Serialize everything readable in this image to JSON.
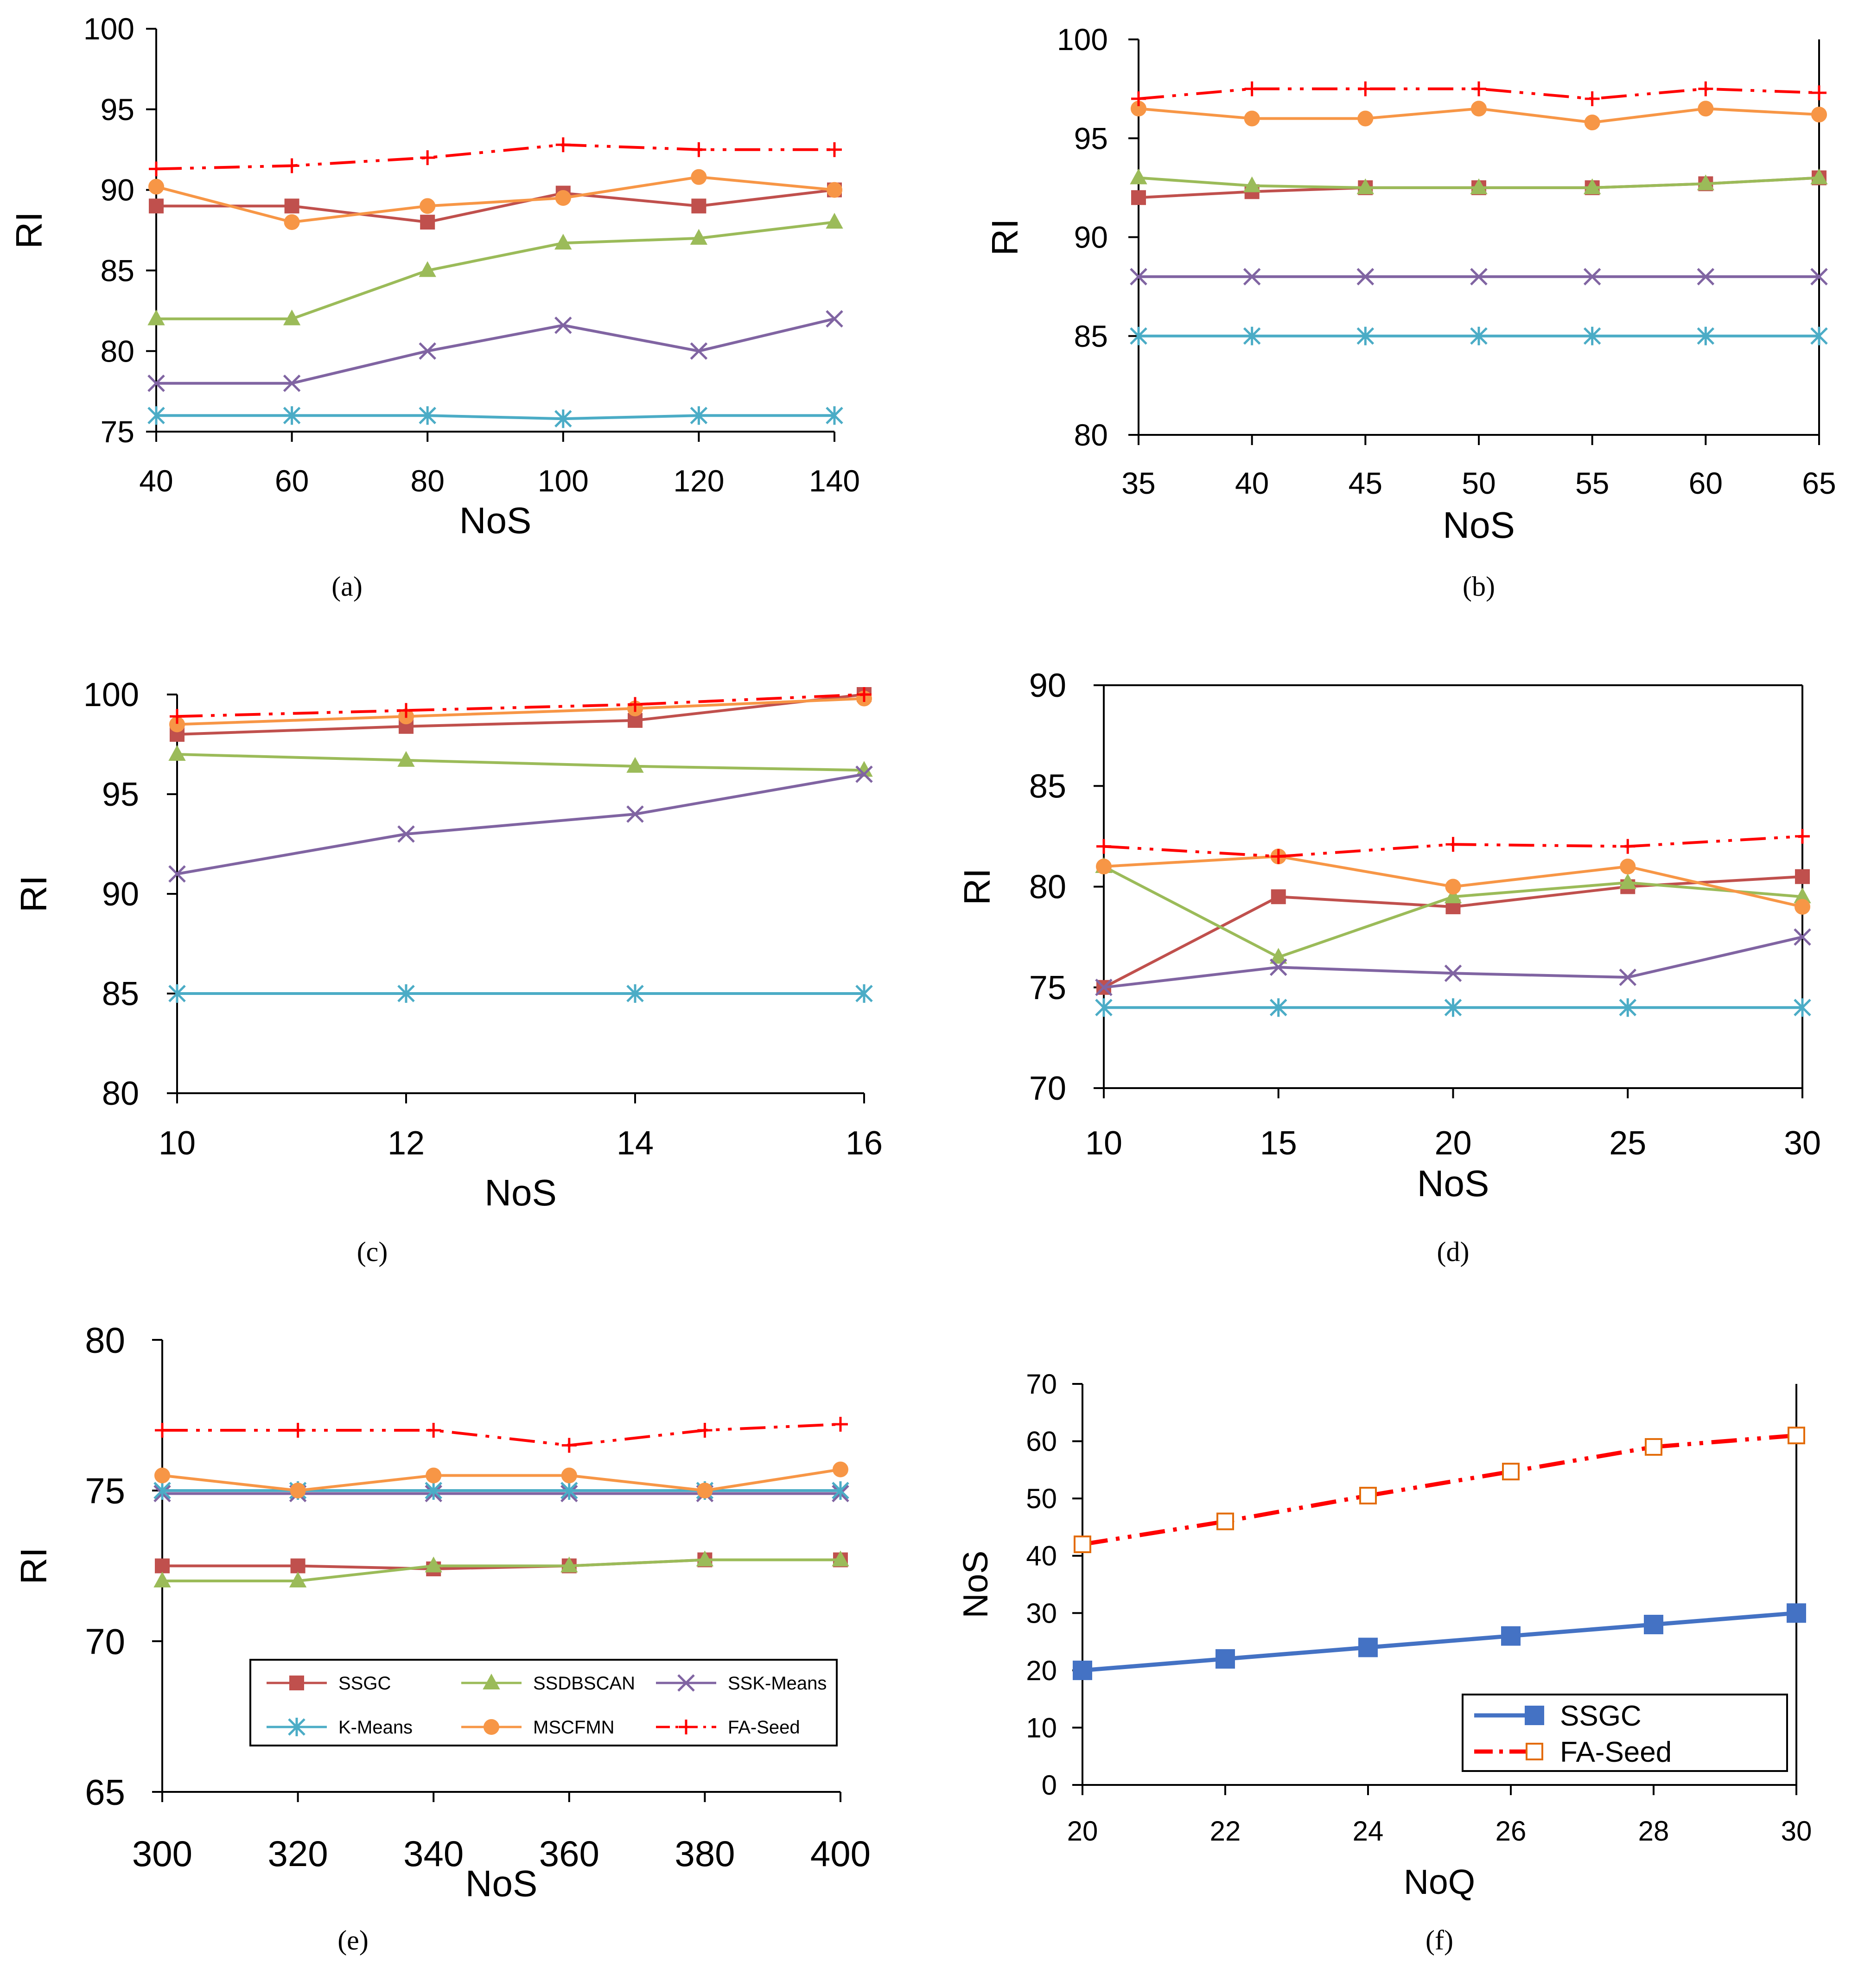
{
  "series_styles": {
    "SSGC": {
      "color": "#C0504D",
      "marker": "square",
      "dash": "solid"
    },
    "SSDBSCAN": {
      "color": "#9BBB59",
      "marker": "triangle",
      "dash": "solid"
    },
    "SSK-Means": {
      "color": "#8064A2",
      "marker": "x",
      "dash": "solid"
    },
    "K-Means": {
      "color": "#4BACC6",
      "marker": "asterisk",
      "dash": "solid"
    },
    "MSCFMN": {
      "color": "#F79646",
      "marker": "circle",
      "dash": "solid"
    },
    "FA-Seed": {
      "color": "#FF0000",
      "marker": "plus",
      "dash": "dashdotdot"
    },
    "SSGC_f": {
      "color": "#4472C4",
      "marker": "square-filled",
      "dash": "solid"
    },
    "FA-Seed_f": {
      "color": "#FF0000",
      "marker": "square-open",
      "dash": "dashdotdot"
    }
  },
  "chart_data": [
    {
      "id": "a",
      "caption": "(a)",
      "type": "line",
      "xlabel": "NoS",
      "ylabel": "RI",
      "x": [
        40,
        60,
        80,
        100,
        120,
        140
      ],
      "xticks": [
        "40",
        "60",
        "80",
        "100",
        "120",
        "140"
      ],
      "ylim": [
        75,
        100
      ],
      "yticks": [
        75,
        80,
        85,
        90,
        95,
        100
      ],
      "legend": null,
      "series": [
        {
          "name": "SSGC",
          "style": "SSGC",
          "values": [
            89,
            89,
            88,
            89.8,
            89,
            90
          ]
        },
        {
          "name": "SSDBSCAN",
          "style": "SSDBSCAN",
          "values": [
            82,
            82,
            85,
            86.7,
            87,
            88
          ]
        },
        {
          "name": "SSK-Means",
          "style": "SSK-Means",
          "values": [
            78,
            78,
            80,
            81.6,
            80,
            82
          ]
        },
        {
          "name": "K-Means",
          "style": "K-Means",
          "values": [
            76,
            76,
            76,
            75.8,
            76,
            76
          ]
        },
        {
          "name": "MSCFMN",
          "style": "MSCFMN",
          "values": [
            90.2,
            88,
            89,
            89.5,
            90.8,
            90
          ]
        },
        {
          "name": "FA-Seed",
          "style": "FA-Seed",
          "values": [
            91.3,
            91.5,
            92,
            92.8,
            92.5,
            92.5
          ]
        }
      ]
    },
    {
      "id": "b",
      "caption": "(b)",
      "type": "line",
      "xlabel": "NoS",
      "ylabel": "RI",
      "x": [
        35,
        40,
        45,
        50,
        55,
        60,
        65
      ],
      "xticks": [
        "35",
        "40",
        "45",
        "50",
        "55",
        "60",
        "65"
      ],
      "ylim": [
        80,
        100
      ],
      "yticks": [
        80,
        85,
        90,
        95,
        100
      ],
      "legend": null,
      "series": [
        {
          "name": "SSGC",
          "style": "SSGC",
          "values": [
            92,
            92.3,
            92.5,
            92.5,
            92.5,
            92.7,
            93
          ]
        },
        {
          "name": "SSDBSCAN",
          "style": "SSDBSCAN",
          "values": [
            93,
            92.6,
            92.5,
            92.5,
            92.5,
            92.7,
            93
          ]
        },
        {
          "name": "SSK-Means",
          "style": "SSK-Means",
          "values": [
            88,
            88,
            88,
            88,
            88,
            88,
            88
          ]
        },
        {
          "name": "K-Means",
          "style": "K-Means",
          "values": [
            85,
            85,
            85,
            85,
            85,
            85,
            85
          ]
        },
        {
          "name": "MSCFMN",
          "style": "MSCFMN",
          "values": [
            96.5,
            96,
            96,
            96.5,
            95.8,
            96.5,
            96.2
          ]
        },
        {
          "name": "FA-Seed",
          "style": "FA-Seed",
          "values": [
            97,
            97.5,
            97.5,
            97.5,
            97,
            97.5,
            97.3
          ]
        }
      ]
    },
    {
      "id": "c",
      "caption": "(c)",
      "type": "line",
      "xlabel": "NoS",
      "ylabel": "RI",
      "x": [
        10,
        12,
        14,
        16
      ],
      "xticks": [
        "10",
        "12",
        "14",
        "16"
      ],
      "ylim": [
        80,
        100
      ],
      "yticks": [
        80,
        85,
        90,
        95,
        100
      ],
      "legend": null,
      "series": [
        {
          "name": "SSGC",
          "style": "SSGC",
          "values": [
            98,
            98.4,
            98.7,
            100
          ]
        },
        {
          "name": "SSDBSCAN",
          "style": "SSDBSCAN",
          "values": [
            97,
            96.7,
            96.4,
            96.2
          ]
        },
        {
          "name": "SSK-Means",
          "style": "SSK-Means",
          "values": [
            91,
            93,
            94,
            96
          ]
        },
        {
          "name": "K-Means",
          "style": "K-Means",
          "values": [
            85,
            85,
            85,
            85
          ]
        },
        {
          "name": "MSCFMN",
          "style": "MSCFMN",
          "values": [
            98.5,
            98.9,
            99.3,
            99.8
          ]
        },
        {
          "name": "FA-Seed",
          "style": "FA-Seed",
          "values": [
            98.9,
            99.2,
            99.5,
            100
          ]
        }
      ]
    },
    {
      "id": "d",
      "caption": "(d)",
      "type": "line",
      "xlabel": "NoS",
      "ylabel": "RI",
      "x": [
        10,
        15,
        20,
        25,
        30
      ],
      "xticks": [
        "10",
        "15",
        "20",
        "25",
        "30"
      ],
      "ylim": [
        70,
        90
      ],
      "yticks": [
        70,
        75,
        80,
        85,
        90
      ],
      "legend": null,
      "series": [
        {
          "name": "SSGC",
          "style": "SSGC",
          "values": [
            75,
            79.5,
            79,
            80,
            80.5
          ]
        },
        {
          "name": "SSDBSCAN",
          "style": "SSDBSCAN",
          "values": [
            81,
            76.5,
            79.5,
            80.2,
            79.5
          ]
        },
        {
          "name": "SSK-Means",
          "style": "SSK-Means",
          "values": [
            75,
            76,
            75.7,
            75.5,
            77.5
          ]
        },
        {
          "name": "K-Means",
          "style": "K-Means",
          "values": [
            74,
            74,
            74,
            74,
            74
          ]
        },
        {
          "name": "MSCFMN",
          "style": "MSCFMN",
          "values": [
            81,
            81.5,
            80,
            81,
            79
          ]
        },
        {
          "name": "FA-Seed",
          "style": "FA-Seed",
          "values": [
            82,
            81.5,
            82.1,
            82,
            82.5
          ]
        }
      ]
    },
    {
      "id": "e",
      "caption": "(e)",
      "type": "line",
      "xlabel": "NoS",
      "ylabel": "RI",
      "x": [
        300,
        320,
        340,
        360,
        380,
        400
      ],
      "xticks": [
        "300",
        "320",
        "340",
        "360",
        "380",
        "400"
      ],
      "ylim": [
        65,
        80
      ],
      "yticks": [
        65,
        70,
        75,
        80
      ],
      "legend": {
        "placement": "bottom-center",
        "columns": 3,
        "labels": [
          "SSGC",
          "SSDBSCAN",
          "SSK-Means",
          "K-Means",
          "MSCFMN",
          "FA-Seed"
        ]
      },
      "series": [
        {
          "name": "SSGC",
          "style": "SSGC",
          "values": [
            72.5,
            72.5,
            72.4,
            72.5,
            72.7,
            72.7
          ]
        },
        {
          "name": "SSDBSCAN",
          "style": "SSDBSCAN",
          "values": [
            72,
            72,
            72.5,
            72.5,
            72.7,
            72.7
          ]
        },
        {
          "name": "SSK-Means",
          "style": "SSK-Means",
          "values": [
            74.9,
            74.9,
            74.9,
            74.9,
            74.9,
            74.9
          ]
        },
        {
          "name": "K-Means",
          "style": "K-Means",
          "values": [
            75,
            75,
            75,
            75,
            75,
            75
          ]
        },
        {
          "name": "MSCFMN",
          "style": "MSCFMN",
          "values": [
            75.5,
            75,
            75.5,
            75.5,
            75,
            75.7
          ]
        },
        {
          "name": "FA-Seed",
          "style": "FA-Seed",
          "values": [
            77,
            77,
            77,
            76.5,
            77,
            77.2
          ]
        }
      ]
    },
    {
      "id": "f",
      "caption": "(f)",
      "type": "line",
      "xlabel": "NoQ",
      "ylabel": "NoS",
      "x": [
        20,
        22,
        24,
        26,
        28,
        30
      ],
      "xticks": [
        "20",
        "22",
        "24",
        "26",
        "28",
        "30"
      ],
      "ylim": [
        0,
        70
      ],
      "yticks": [
        0,
        10,
        20,
        30,
        40,
        50,
        60,
        70
      ],
      "legend": {
        "placement": "bottom-right",
        "columns": 1,
        "labels": [
          "SSGC",
          "FA-Seed"
        ]
      },
      "series": [
        {
          "name": "SSGC",
          "style": "SSGC_f",
          "values": [
            20,
            22,
            24,
            26,
            28,
            30
          ]
        },
        {
          "name": "FA-Seed",
          "style": "FA-Seed_f",
          "values": [
            42,
            46,
            50.5,
            54.7,
            59,
            61
          ]
        }
      ]
    }
  ]
}
